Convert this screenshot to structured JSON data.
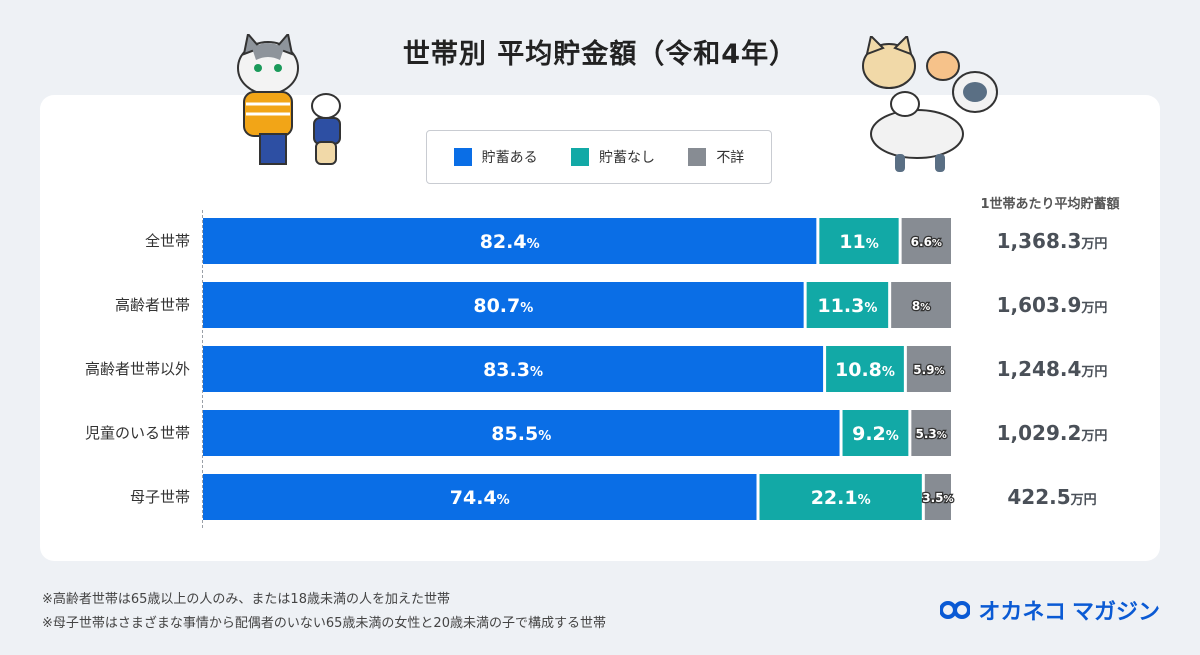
{
  "title": "世帯別 平均貯金額（令和4年）",
  "legend": [
    {
      "label": "貯蓄ある",
      "color": "#0a6ee6"
    },
    {
      "label": "貯蓄なし",
      "color": "#12a9a6"
    },
    {
      "label": "不詳",
      "color": "#878c93"
    }
  ],
  "avg_header": "1世帯あたり平均貯蓄額",
  "avg_unit": "万円",
  "footnotes": [
    "※高齢者世帯は65歳以上の人のみ、または18歳未満の人を加えた世帯",
    "※母子世帯はさまざまな事情から配偶者のいない65歳未満の女性と20歳未満の子で構成する世帯"
  ],
  "logo": {
    "part1": "オカネコ",
    "part2": "マガジン"
  },
  "chart_data": {
    "type": "bar",
    "orientation": "horizontal-stacked",
    "unit": "%",
    "categories": [
      "全世帯",
      "高齢者世帯",
      "高齢者世帯以外",
      "児童のいる世帯",
      "母子世帯"
    ],
    "series": [
      {
        "name": "貯蓄ある",
        "color": "#0a6ee6",
        "values": [
          82.4,
          80.7,
          83.3,
          85.5,
          74.4
        ],
        "labels": [
          "82.4",
          "80.7",
          "83.3",
          "85.5",
          "74.4"
        ]
      },
      {
        "name": "貯蓄なし",
        "color": "#12a9a6",
        "values": [
          11,
          11.3,
          10.8,
          9.2,
          22.1
        ],
        "labels": [
          "11",
          "11.3",
          "10.8",
          "9.2",
          "22.1"
        ]
      },
      {
        "name": "不詳",
        "color": "#878c93",
        "values": [
          6.6,
          8,
          5.9,
          5.3,
          3.5
        ],
        "labels": [
          "6.6",
          "8",
          "5.9",
          "5.3",
          "3.5"
        ]
      }
    ],
    "averages": [
      "1,368.3",
      "1,603.9",
      "1,248.4",
      "1,029.2",
      "422.5"
    ]
  }
}
